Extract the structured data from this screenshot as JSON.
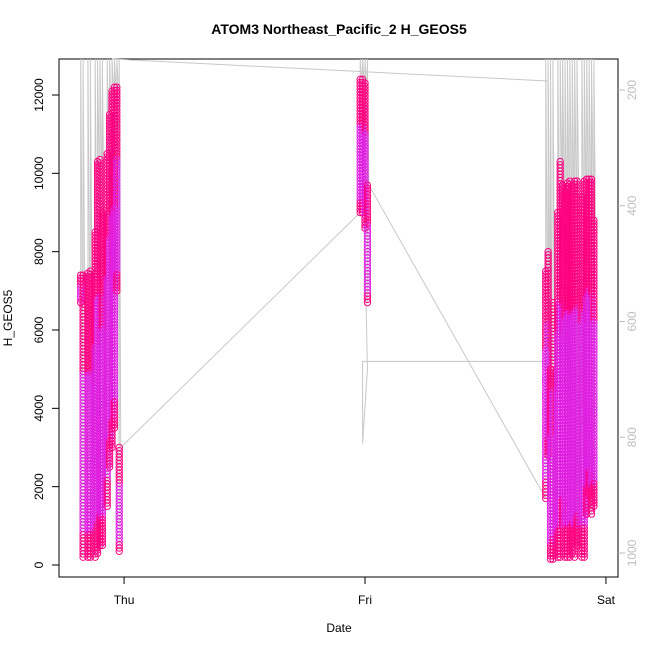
{
  "chart_data": {
    "type": "scatter",
    "title": "ATOM3 Northeast_Pacific_2 H_GEOS5",
    "xlabel": "Date",
    "ylabel": "H_GEOS5",
    "ylim": [
      0,
      12800
    ],
    "y_ticks": [
      0,
      2000,
      4000,
      6000,
      8000,
      10000,
      12000
    ],
    "x_ticks": [
      {
        "value": 0,
        "label": "Thu"
      },
      {
        "value": 1,
        "label": "Fri"
      },
      {
        "value": 2,
        "label": "Sat"
      }
    ],
    "secondary_y_axis": {
      "label": "",
      "reversed": true,
      "ticks": [
        200,
        400,
        600,
        800,
        1000
      ],
      "color": "#bebebe"
    },
    "grid": false,
    "marker_color": "#ff0080",
    "marker_color_light": "#e020e0",
    "line_color": "#c8c8c8",
    "series": [
      {
        "values": [
          {
            "x": -0.18,
            "y": [
              6700,
              7400
            ]
          },
          {
            "x": -0.17,
            "y": [
              200,
              7400
            ]
          },
          {
            "x": -0.15,
            "y": [
              200,
              7450
            ]
          },
          {
            "x": -0.14,
            "y": [
              200,
              7500
            ]
          },
          {
            "x": -0.12,
            "y": [
              200,
              8500
            ]
          },
          {
            "x": -0.11,
            "y": [
              300,
              10300
            ]
          },
          {
            "x": -0.1,
            "y": [
              500,
              10350
            ]
          },
          {
            "x": -0.09,
            "y": [
              500,
              9000
            ]
          },
          {
            "x": -0.07,
            "y": [
              1500,
              10500
            ]
          },
          {
            "x": -0.06,
            "y": [
              2500,
              11500
            ]
          },
          {
            "x": -0.05,
            "y": [
              3000,
              12100
            ]
          },
          {
            "x": -0.04,
            "y": [
              3500,
              12200
            ]
          },
          {
            "x": -0.03,
            "y": [
              7000,
              12200
            ]
          },
          {
            "x": -0.02,
            "y": [
              350,
              3000
            ]
          },
          {
            "x": 0.98,
            "y": [
              9000,
              12400
            ]
          },
          {
            "x": 0.99,
            "y": [
              9000,
              12400
            ]
          },
          {
            "x": 1.0,
            "y": [
              8600,
              12300
            ]
          },
          {
            "x": 1.01,
            "y": [
              6700,
              9700
            ]
          },
          {
            "x": 1.75,
            "y": [
              1700,
              7500
            ]
          },
          {
            "x": 1.76,
            "y": [
              2800,
              8000
            ]
          },
          {
            "x": 1.77,
            "y": [
              150,
              5000
            ]
          },
          {
            "x": 1.78,
            "y": [
              150,
              6700
            ]
          },
          {
            "x": 1.8,
            "y": [
              200,
              9000
            ]
          },
          {
            "x": 1.81,
            "y": [
              200,
              10300
            ]
          },
          {
            "x": 1.82,
            "y": [
              1000,
              9700
            ]
          },
          {
            "x": 1.83,
            "y": [
              200,
              9500
            ]
          },
          {
            "x": 1.84,
            "y": [
              200,
              9750
            ]
          },
          {
            "x": 1.85,
            "y": [
              200,
              9800
            ]
          },
          {
            "x": 1.86,
            "y": [
              300,
              9700
            ]
          },
          {
            "x": 1.87,
            "y": [
              200,
              9800
            ]
          },
          {
            "x": 1.88,
            "y": [
              500,
              9800
            ]
          },
          {
            "x": 1.9,
            "y": [
              200,
              9400
            ]
          },
          {
            "x": 1.91,
            "y": [
              200,
              9800
            ]
          },
          {
            "x": 1.92,
            "y": [
              1300,
              9850
            ]
          },
          {
            "x": 1.93,
            "y": [
              1800,
              9850
            ]
          },
          {
            "x": 1.94,
            "y": [
              1300,
              9850
            ]
          },
          {
            "x": 1.95,
            "y": [
              1500,
              8800
            ]
          }
        ]
      }
    ]
  }
}
